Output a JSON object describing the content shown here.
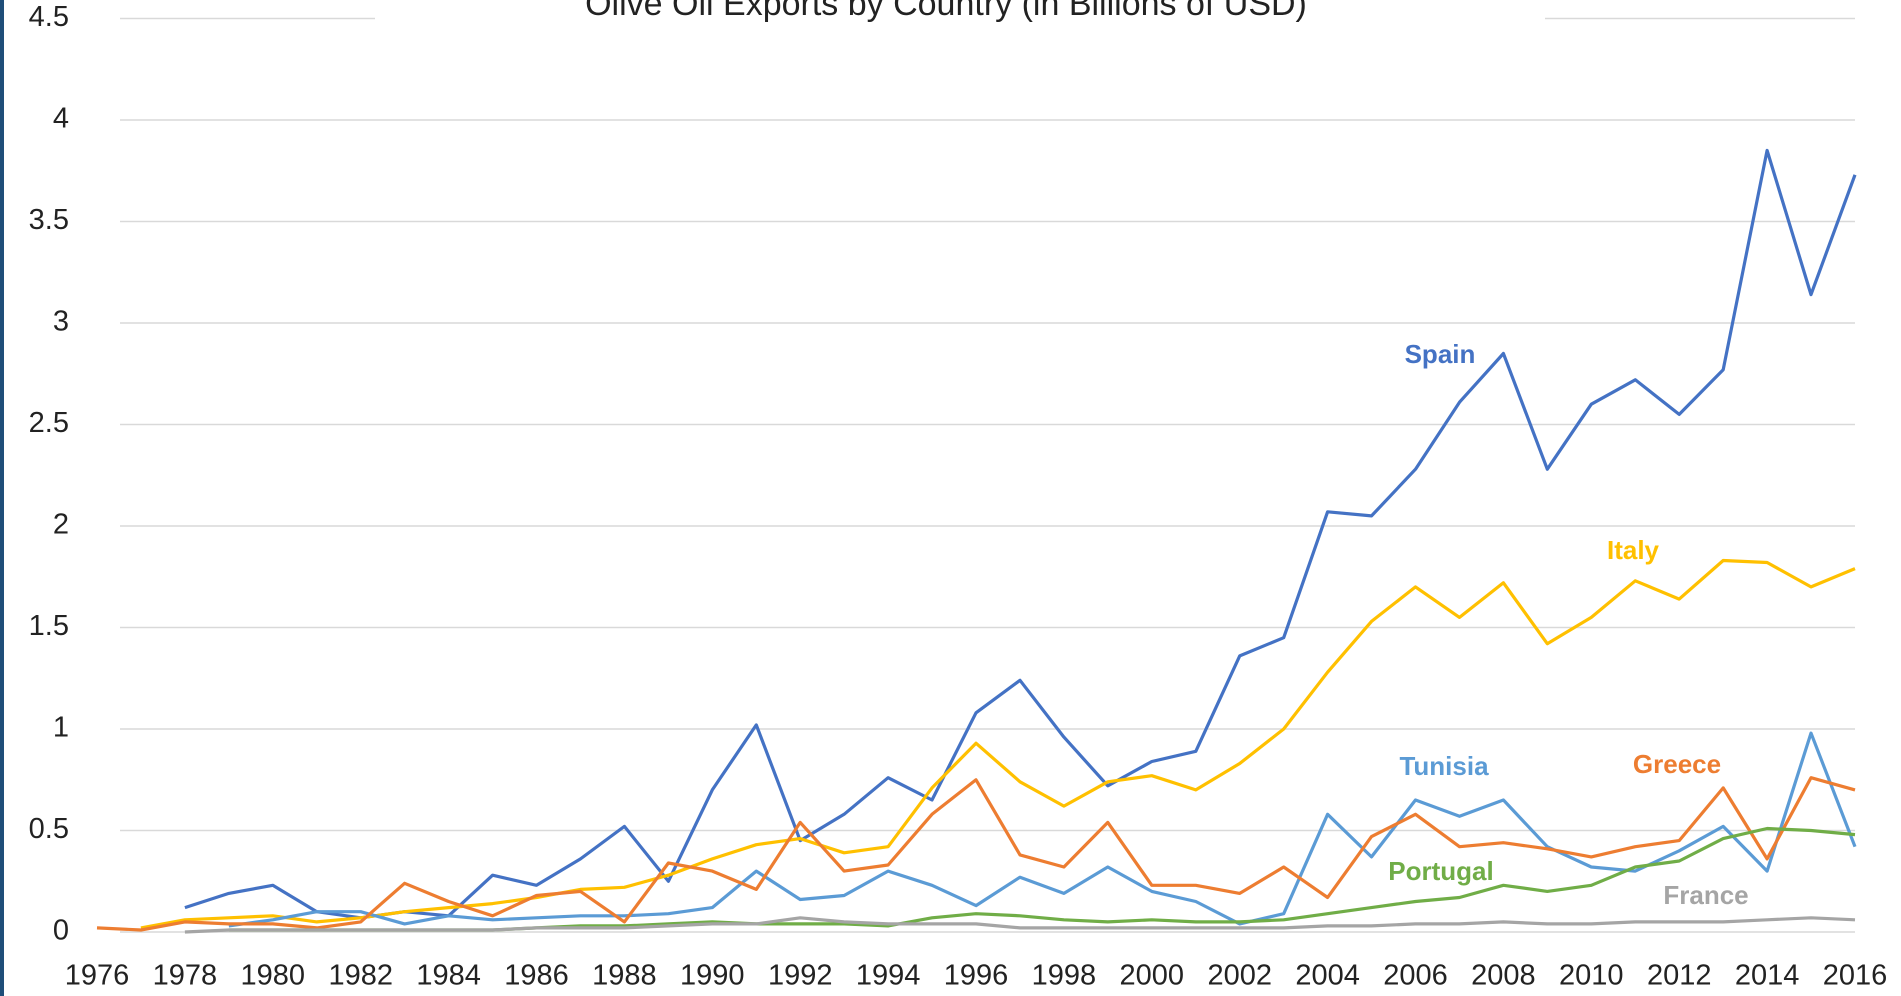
{
  "chart_data": {
    "type": "line",
    "title": "Olive Oil Exports by Country (in Billions of USD)",
    "x": [
      1976,
      1977,
      1978,
      1979,
      1980,
      1981,
      1982,
      1983,
      1984,
      1985,
      1986,
      1987,
      1988,
      1989,
      1990,
      1991,
      1992,
      1993,
      1994,
      1995,
      1996,
      1997,
      1998,
      1999,
      2000,
      2001,
      2002,
      2003,
      2004,
      2005,
      2006,
      2007,
      2008,
      2009,
      2010,
      2011,
      2012,
      2013,
      2014,
      2015,
      2016
    ],
    "xlim": [
      1976,
      2016
    ],
    "xticks": [
      1976,
      1978,
      1980,
      1982,
      1984,
      1986,
      1988,
      1990,
      1992,
      1994,
      1996,
      1998,
      2000,
      2002,
      2004,
      2006,
      2008,
      2010,
      2012,
      2014,
      2016
    ],
    "ylim": [
      0,
      4.5
    ],
    "yticks": [
      0,
      0.5,
      1,
      1.5,
      2,
      2.5,
      3,
      3.5,
      4,
      4.5
    ],
    "grid": true,
    "series": [
      {
        "name": "Spain",
        "color": "#4472c4",
        "values": [
          null,
          null,
          0.12,
          0.19,
          0.23,
          0.1,
          0.07,
          0.1,
          0.08,
          0.28,
          0.23,
          0.36,
          0.52,
          0.25,
          0.7,
          1.02,
          0.45,
          0.58,
          0.76,
          0.65,
          1.08,
          1.24,
          0.96,
          0.72,
          0.84,
          0.89,
          1.36,
          1.45,
          2.07,
          2.05,
          2.28,
          2.61,
          2.85,
          2.28,
          2.6,
          2.72,
          2.55,
          2.77,
          3.85,
          3.14,
          3.73
        ]
      },
      {
        "name": "Italy",
        "color": "#ffc000",
        "values": [
          null,
          0.02,
          0.06,
          0.07,
          0.08,
          0.05,
          0.07,
          0.1,
          0.12,
          0.14,
          0.17,
          0.21,
          0.22,
          0.28,
          0.36,
          0.43,
          0.46,
          0.39,
          0.42,
          0.71,
          0.93,
          0.74,
          0.62,
          0.74,
          0.77,
          0.7,
          0.83,
          1.0,
          1.28,
          1.53,
          1.7,
          1.55,
          1.72,
          1.42,
          1.55,
          1.73,
          1.64,
          1.83,
          1.82,
          1.7,
          1.79
        ]
      },
      {
        "name": "Tunisia",
        "color": "#5b9bd5",
        "values": [
          null,
          null,
          null,
          0.03,
          0.06,
          0.1,
          0.1,
          0.04,
          0.08,
          0.06,
          0.07,
          0.08,
          0.08,
          0.09,
          0.12,
          0.3,
          0.16,
          0.18,
          0.3,
          0.23,
          0.13,
          0.27,
          0.19,
          0.32,
          0.2,
          0.15,
          0.04,
          0.09,
          0.58,
          0.37,
          0.65,
          0.57,
          0.65,
          0.42,
          0.32,
          0.3,
          0.4,
          0.52,
          0.3,
          0.98,
          0.42
        ]
      },
      {
        "name": "Greece",
        "color": "#ed7d31",
        "values": [
          0.02,
          0.01,
          0.05,
          0.04,
          0.04,
          0.02,
          0.05,
          0.24,
          0.15,
          0.08,
          0.18,
          0.2,
          0.05,
          0.34,
          0.3,
          0.21,
          0.54,
          0.3,
          0.33,
          0.58,
          0.75,
          0.38,
          0.32,
          0.54,
          0.23,
          0.23,
          0.19,
          0.32,
          0.17,
          0.47,
          0.58,
          0.42,
          0.44,
          0.41,
          0.37,
          0.42,
          0.45,
          0.71,
          0.36,
          0.76,
          0.7
        ]
      },
      {
        "name": "Portugal",
        "color": "#70ad47",
        "values": [
          null,
          null,
          null,
          0.01,
          0.01,
          0.01,
          0.01,
          0.01,
          0.01,
          0.01,
          0.02,
          0.03,
          0.03,
          0.04,
          0.05,
          0.04,
          0.04,
          0.04,
          0.03,
          0.07,
          0.09,
          0.08,
          0.06,
          0.05,
          0.06,
          0.05,
          0.05,
          0.06,
          0.09,
          0.12,
          0.15,
          0.17,
          0.23,
          0.2,
          0.23,
          0.32,
          0.35,
          0.46,
          0.51,
          0.5,
          0.48
        ]
      },
      {
        "name": "France",
        "color": "#a5a5a5",
        "values": [
          null,
          null,
          0.0,
          0.01,
          0.01,
          0.01,
          0.01,
          0.01,
          0.01,
          0.01,
          0.02,
          0.02,
          0.02,
          0.03,
          0.04,
          0.04,
          0.07,
          0.05,
          0.04,
          0.04,
          0.04,
          0.02,
          0.02,
          0.02,
          0.02,
          0.02,
          0.02,
          0.02,
          0.03,
          0.03,
          0.04,
          0.04,
          0.05,
          0.04,
          0.04,
          0.05,
          0.05,
          0.05,
          0.06,
          0.07,
          0.06
        ]
      }
    ]
  }
}
